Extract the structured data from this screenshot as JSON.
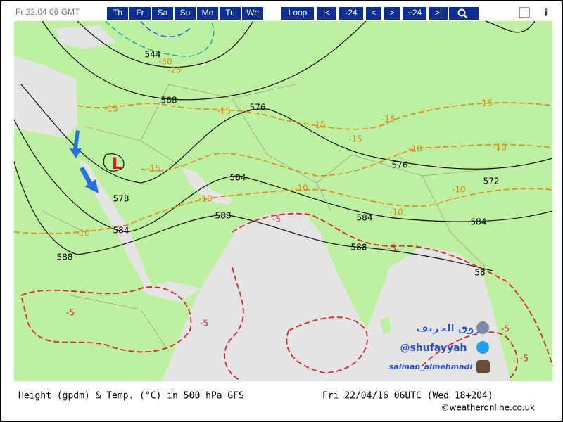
{
  "toolbar": {
    "date_label": "Fr 22.04 06 GMT",
    "day_buttons": [
      "Th",
      "Fr",
      "Sa",
      "Su",
      "Mo",
      "Tu",
      "We"
    ],
    "nav_buttons": [
      "Loop",
      "|<",
      "-24",
      "<",
      ">",
      "+24",
      ">|"
    ]
  },
  "map": {
    "low_marker": "L",
    "height_labels": [
      "544",
      "568",
      "576",
      "584",
      "588",
      "584",
      "584",
      "588",
      "576",
      "572",
      "578",
      "584",
      "588",
      "58"
    ],
    "temp_labels": [
      "-15",
      "-15",
      "-15",
      "-15",
      "-15",
      "-15",
      "-10",
      "-10",
      "-10",
      "-10",
      "-10",
      "-10",
      "-15",
      "-25",
      "-30",
      "-10"
    ],
    "warm_labels": [
      "-5",
      "-5",
      "-5",
      "-5",
      "-5",
      "-5"
    ],
    "overlay": {
      "arabic": "بروق الخريف",
      "handle": "@shufayyah",
      "instagram": "salman_almehmadi"
    }
  },
  "caption": {
    "left": "Height (gpdm) & Temp. (°C) in 500 hPa GFS",
    "right": "Fri 22/04/16 06UTC  (Wed 18+204)",
    "credit": "©weatheronline.co.uk"
  }
}
